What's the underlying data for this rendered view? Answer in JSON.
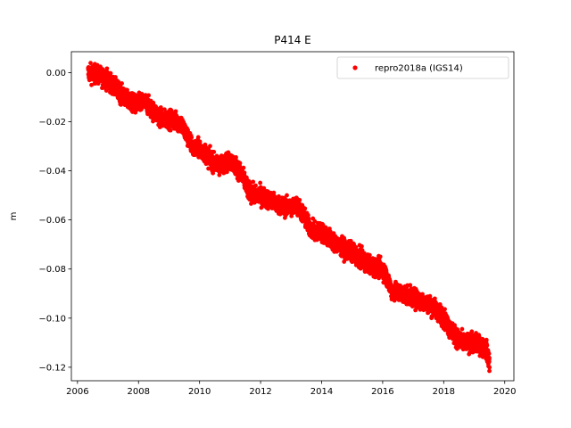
{
  "chart_data": {
    "type": "scatter",
    "title": "P414 E",
    "xlabel": "",
    "ylabel": "m",
    "xlim": [
      2005.8,
      2020.3
    ],
    "ylim": [
      -0.1255,
      0.0085
    ],
    "xticks": [
      2006,
      2008,
      2010,
      2012,
      2014,
      2016,
      2018,
      2020
    ],
    "yticks": [
      0.0,
      -0.02,
      -0.04,
      -0.06,
      -0.08,
      -0.1,
      -0.12
    ],
    "xtick_labels": [
      "2006",
      "2008",
      "2010",
      "2012",
      "2014",
      "2016",
      "2018",
      "2020"
    ],
    "ytick_labels": [
      "0.00",
      "−0.02",
      "−0.04",
      "−0.06",
      "−0.08",
      "−0.10",
      "−0.12"
    ],
    "grid": false,
    "legend_position": "top-right",
    "series": [
      {
        "name": "repro2018a (IGS14)",
        "color": "#ff0000",
        "marker": "circle",
        "trend": [
          [
            2006.35,
            0.0
          ],
          [
            2006.7,
            -0.001
          ],
          [
            2007.0,
            -0.003
          ],
          [
            2007.3,
            -0.007
          ],
          [
            2007.6,
            -0.011
          ],
          [
            2007.9,
            -0.013
          ],
          [
            2008.2,
            -0.012
          ],
          [
            2008.5,
            -0.016
          ],
          [
            2008.8,
            -0.019
          ],
          [
            2009.1,
            -0.019
          ],
          [
            2009.4,
            -0.021
          ],
          [
            2009.6,
            -0.026
          ],
          [
            2009.8,
            -0.031
          ],
          [
            2010.0,
            -0.031
          ],
          [
            2010.2,
            -0.033
          ],
          [
            2010.4,
            -0.036
          ],
          [
            2010.6,
            -0.038
          ],
          [
            2010.8,
            -0.037
          ],
          [
            2011.0,
            -0.036
          ],
          [
            2011.2,
            -0.038
          ],
          [
            2011.4,
            -0.042
          ],
          [
            2011.6,
            -0.048
          ],
          [
            2011.8,
            -0.05
          ],
          [
            2012.0,
            -0.05
          ],
          [
            2012.3,
            -0.052
          ],
          [
            2012.6,
            -0.054
          ],
          [
            2012.9,
            -0.055
          ],
          [
            2013.2,
            -0.054
          ],
          [
            2013.4,
            -0.058
          ],
          [
            2013.6,
            -0.063
          ],
          [
            2013.8,
            -0.065
          ],
          [
            2014.0,
            -0.065
          ],
          [
            2014.2,
            -0.067
          ],
          [
            2014.5,
            -0.07
          ],
          [
            2014.8,
            -0.072
          ],
          [
            2015.1,
            -0.074
          ],
          [
            2015.4,
            -0.077
          ],
          [
            2015.7,
            -0.079
          ],
          [
            2016.0,
            -0.08
          ],
          [
            2016.15,
            -0.084
          ],
          [
            2016.3,
            -0.089
          ],
          [
            2016.6,
            -0.09
          ],
          [
            2016.9,
            -0.091
          ],
          [
            2017.2,
            -0.093
          ],
          [
            2017.5,
            -0.094
          ],
          [
            2017.8,
            -0.097
          ],
          [
            2018.0,
            -0.1
          ],
          [
            2018.2,
            -0.104
          ],
          [
            2018.4,
            -0.108
          ],
          [
            2018.7,
            -0.11
          ],
          [
            2019.0,
            -0.11
          ],
          [
            2019.2,
            -0.111
          ],
          [
            2019.4,
            -0.113
          ],
          [
            2019.5,
            -0.118
          ]
        ],
        "scatter_spread": 0.0018
      }
    ]
  }
}
